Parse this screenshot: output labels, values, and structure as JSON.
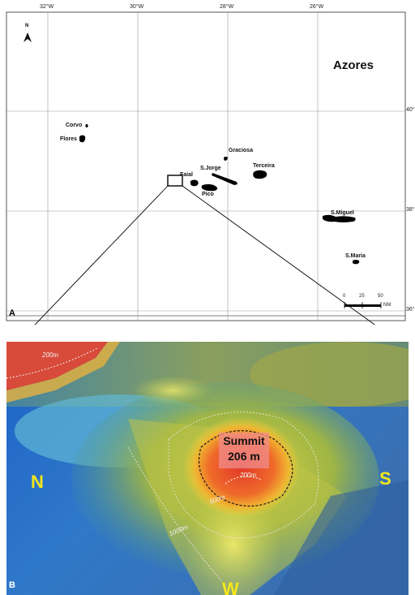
{
  "map_a": {
    "panel_label": "A",
    "region_title": "Azores",
    "north_label": "N",
    "longitude_ticks": [
      "32°W",
      "30°W",
      "28°W",
      "26°W"
    ],
    "latitude_ticks": [
      "40°",
      "38°",
      "36°"
    ],
    "islands": [
      {
        "name": "Corvo"
      },
      {
        "name": "Flores"
      },
      {
        "name": "Graciosa"
      },
      {
        "name": "S.Jorge"
      },
      {
        "name": "Terceira"
      },
      {
        "name": "Faial"
      },
      {
        "name": "Pico"
      },
      {
        "name": "S.Miguel"
      },
      {
        "name": "S.Maria"
      }
    ],
    "scale_bar": {
      "ticks": [
        "0",
        "25",
        "50"
      ],
      "unit": "NM"
    }
  },
  "view_b": {
    "panel_label": "B",
    "summit_label_line1": "Summit",
    "summit_label_line2": "206 m",
    "contours": [
      "200m",
      "200m",
      "500m",
      "1000m"
    ],
    "compass": {
      "north": "N",
      "south": "S",
      "west": "W"
    }
  }
}
